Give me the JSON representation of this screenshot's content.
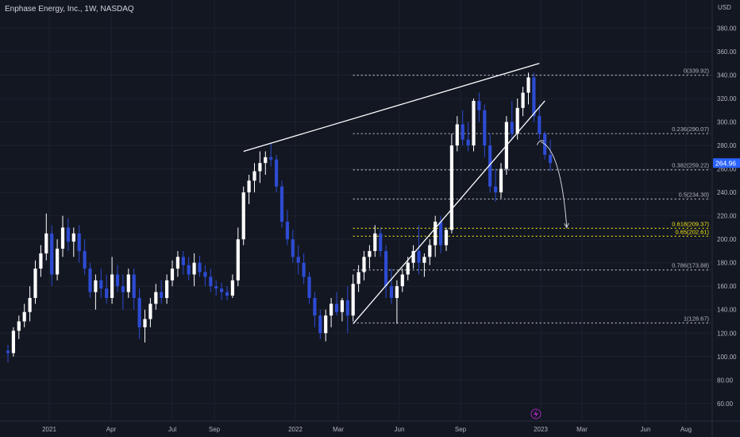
{
  "title": "Enphase Energy, Inc., 1W, NASDAQ",
  "currency": "USD",
  "last_price": "264.96",
  "colors": {
    "background": "#131722",
    "grid": "#1e222d",
    "text": "#b2b5be",
    "bull": "#ffffff",
    "bear": "#2d4bd2",
    "trendline": "#ffffff",
    "fib_line": "#b2b5be",
    "fib_highlight": "#f5e51a",
    "price_tag": "#2962ff"
  },
  "chart_data": {
    "type": "candlestick",
    "y_axis": {
      "ticks": [
        "60.00",
        "80.00",
        "100.00",
        "120.00",
        "140.00",
        "160.00",
        "180.00",
        "200.00",
        "220.00",
        "240.00",
        "260.00",
        "280.00",
        "300.00",
        "320.00",
        "340.00",
        "360.00",
        "380.00"
      ],
      "ylim": [
        45,
        404
      ],
      "position": "right"
    },
    "x_axis": {
      "tick_labels": [
        "2021",
        "Apr",
        "Jul",
        "Sep",
        "2022",
        "Mar",
        "Jun",
        "Sep",
        "2023",
        "Mar",
        "Jun",
        "Aug"
      ]
    },
    "grid": true,
    "candles": [
      {
        "o": 105,
        "h": 110,
        "l": 95,
        "c": 103
      },
      {
        "o": 103,
        "h": 125,
        "l": 100,
        "c": 122
      },
      {
        "o": 122,
        "h": 135,
        "l": 115,
        "c": 130
      },
      {
        "o": 130,
        "h": 145,
        "l": 125,
        "c": 138
      },
      {
        "o": 138,
        "h": 160,
        "l": 130,
        "c": 150
      },
      {
        "o": 150,
        "h": 182,
        "l": 145,
        "c": 175
      },
      {
        "o": 175,
        "h": 195,
        "l": 168,
        "c": 188
      },
      {
        "o": 188,
        "h": 222,
        "l": 182,
        "c": 205
      },
      {
        "o": 205,
        "h": 212,
        "l": 160,
        "c": 170
      },
      {
        "o": 170,
        "h": 200,
        "l": 165,
        "c": 192
      },
      {
        "o": 192,
        "h": 220,
        "l": 185,
        "c": 210
      },
      {
        "o": 210,
        "h": 218,
        "l": 190,
        "c": 198
      },
      {
        "o": 198,
        "h": 210,
        "l": 185,
        "c": 205
      },
      {
        "o": 205,
        "h": 212,
        "l": 180,
        "c": 190
      },
      {
        "o": 190,
        "h": 200,
        "l": 170,
        "c": 175
      },
      {
        "o": 175,
        "h": 180,
        "l": 150,
        "c": 155
      },
      {
        "o": 155,
        "h": 170,
        "l": 140,
        "c": 165
      },
      {
        "o": 165,
        "h": 175,
        "l": 150,
        "c": 158
      },
      {
        "o": 158,
        "h": 170,
        "l": 145,
        "c": 150
      },
      {
        "o": 150,
        "h": 185,
        "l": 145,
        "c": 170
      },
      {
        "o": 170,
        "h": 178,
        "l": 155,
        "c": 160
      },
      {
        "o": 160,
        "h": 170,
        "l": 140,
        "c": 155
      },
      {
        "o": 155,
        "h": 175,
        "l": 150,
        "c": 170
      },
      {
        "o": 170,
        "h": 175,
        "l": 140,
        "c": 150
      },
      {
        "o": 150,
        "h": 158,
        "l": 115,
        "c": 125
      },
      {
        "o": 125,
        "h": 140,
        "l": 112,
        "c": 132
      },
      {
        "o": 132,
        "h": 150,
        "l": 125,
        "c": 145
      },
      {
        "o": 145,
        "h": 162,
        "l": 140,
        "c": 155
      },
      {
        "o": 155,
        "h": 165,
        "l": 145,
        "c": 150
      },
      {
        "o": 150,
        "h": 170,
        "l": 145,
        "c": 165
      },
      {
        "o": 165,
        "h": 182,
        "l": 160,
        "c": 175
      },
      {
        "o": 175,
        "h": 190,
        "l": 168,
        "c": 185
      },
      {
        "o": 185,
        "h": 190,
        "l": 170,
        "c": 178
      },
      {
        "o": 178,
        "h": 185,
        "l": 165,
        "c": 170
      },
      {
        "o": 170,
        "h": 188,
        "l": 160,
        "c": 180
      },
      {
        "o": 180,
        "h": 186,
        "l": 168,
        "c": 172
      },
      {
        "o": 172,
        "h": 178,
        "l": 160,
        "c": 168
      },
      {
        "o": 168,
        "h": 175,
        "l": 155,
        "c": 160
      },
      {
        "o": 160,
        "h": 165,
        "l": 152,
        "c": 158
      },
      {
        "o": 158,
        "h": 163,
        "l": 148,
        "c": 155
      },
      {
        "o": 155,
        "h": 160,
        "l": 148,
        "c": 152
      },
      {
        "o": 152,
        "h": 170,
        "l": 150,
        "c": 165
      },
      {
        "o": 165,
        "h": 210,
        "l": 160,
        "c": 200
      },
      {
        "o": 200,
        "h": 245,
        "l": 195,
        "c": 240
      },
      {
        "o": 240,
        "h": 255,
        "l": 230,
        "c": 250
      },
      {
        "o": 250,
        "h": 265,
        "l": 240,
        "c": 258
      },
      {
        "o": 258,
        "h": 275,
        "l": 248,
        "c": 265
      },
      {
        "o": 265,
        "h": 275,
        "l": 255,
        "c": 270
      },
      {
        "o": 270,
        "h": 282,
        "l": 262,
        "c": 268
      },
      {
        "o": 268,
        "h": 272,
        "l": 240,
        "c": 245
      },
      {
        "o": 245,
        "h": 250,
        "l": 210,
        "c": 215
      },
      {
        "o": 215,
        "h": 225,
        "l": 195,
        "c": 200
      },
      {
        "o": 200,
        "h": 208,
        "l": 180,
        "c": 185
      },
      {
        "o": 185,
        "h": 195,
        "l": 170,
        "c": 180
      },
      {
        "o": 180,
        "h": 188,
        "l": 162,
        "c": 168
      },
      {
        "o": 168,
        "h": 172,
        "l": 145,
        "c": 150
      },
      {
        "o": 150,
        "h": 155,
        "l": 125,
        "c": 135
      },
      {
        "o": 135,
        "h": 140,
        "l": 115,
        "c": 120
      },
      {
        "o": 120,
        "h": 140,
        "l": 113,
        "c": 135
      },
      {
        "o": 135,
        "h": 150,
        "l": 125,
        "c": 145
      },
      {
        "o": 145,
        "h": 155,
        "l": 135,
        "c": 138
      },
      {
        "o": 138,
        "h": 150,
        "l": 130,
        "c": 148
      },
      {
        "o": 148,
        "h": 160,
        "l": 120,
        "c": 135
      },
      {
        "o": 135,
        "h": 170,
        "l": 130,
        "c": 162
      },
      {
        "o": 162,
        "h": 178,
        "l": 155,
        "c": 172
      },
      {
        "o": 172,
        "h": 190,
        "l": 165,
        "c": 185
      },
      {
        "o": 185,
        "h": 195,
        "l": 175,
        "c": 190
      },
      {
        "o": 190,
        "h": 212,
        "l": 185,
        "c": 205
      },
      {
        "o": 205,
        "h": 210,
        "l": 185,
        "c": 190
      },
      {
        "o": 190,
        "h": 195,
        "l": 150,
        "c": 160
      },
      {
        "o": 160,
        "h": 175,
        "l": 145,
        "c": 150
      },
      {
        "o": 150,
        "h": 165,
        "l": 128,
        "c": 160
      },
      {
        "o": 160,
        "h": 175,
        "l": 155,
        "c": 170
      },
      {
        "o": 170,
        "h": 185,
        "l": 165,
        "c": 180
      },
      {
        "o": 180,
        "h": 195,
        "l": 175,
        "c": 190
      },
      {
        "o": 190,
        "h": 212,
        "l": 170,
        "c": 180
      },
      {
        "o": 180,
        "h": 188,
        "l": 168,
        "c": 185
      },
      {
        "o": 185,
        "h": 200,
        "l": 178,
        "c": 195
      },
      {
        "o": 195,
        "h": 220,
        "l": 185,
        "c": 215
      },
      {
        "o": 215,
        "h": 220,
        "l": 188,
        "c": 195
      },
      {
        "o": 195,
        "h": 210,
        "l": 190,
        "c": 208
      },
      {
        "o": 208,
        "h": 290,
        "l": 205,
        "c": 280
      },
      {
        "o": 280,
        "h": 305,
        "l": 275,
        "c": 298
      },
      {
        "o": 298,
        "h": 310,
        "l": 280,
        "c": 285
      },
      {
        "o": 285,
        "h": 300,
        "l": 275,
        "c": 280
      },
      {
        "o": 280,
        "h": 320,
        "l": 275,
        "c": 318
      },
      {
        "o": 318,
        "h": 325,
        "l": 300,
        "c": 310
      },
      {
        "o": 310,
        "h": 315,
        "l": 270,
        "c": 280
      },
      {
        "o": 280,
        "h": 290,
        "l": 240,
        "c": 245
      },
      {
        "o": 245,
        "h": 260,
        "l": 232,
        "c": 240
      },
      {
        "o": 240,
        "h": 265,
        "l": 235,
        "c": 260
      },
      {
        "o": 260,
        "h": 305,
        "l": 255,
        "c": 300
      },
      {
        "o": 300,
        "h": 318,
        "l": 285,
        "c": 290
      },
      {
        "o": 290,
        "h": 320,
        "l": 285,
        "c": 312
      },
      {
        "o": 312,
        "h": 330,
        "l": 305,
        "c": 325
      },
      {
        "o": 325,
        "h": 342,
        "l": 315,
        "c": 338
      },
      {
        "o": 338,
        "h": 342,
        "l": 300,
        "c": 305
      },
      {
        "o": 305,
        "h": 315,
        "l": 285,
        "c": 290
      },
      {
        "o": 290,
        "h": 292,
        "l": 268,
        "c": 272
      },
      {
        "o": 272,
        "h": 285,
        "l": 258,
        "c": 264.96
      }
    ],
    "fib_levels": [
      {
        "label": "0(339.92)",
        "value": 339.92,
        "highlight": false
      },
      {
        "label": "0.236(290.07)",
        "value": 290.07,
        "highlight": false
      },
      {
        "label": "0.382(259.22)",
        "value": 259.22,
        "highlight": false
      },
      {
        "label": "0.5(234.30)",
        "value": 234.3,
        "highlight": false
      },
      {
        "label": "0.618(209.37)",
        "value": 209.37,
        "highlight": true
      },
      {
        "label": "0.65(202.61)",
        "value": 202.61,
        "highlight": true
      },
      {
        "label": "0.786(173.88)",
        "value": 173.88,
        "highlight": false
      },
      {
        "label": "1(128.67)",
        "value": 128.67,
        "highlight": false
      }
    ],
    "fib_start_index": 63,
    "trendlines": [
      {
        "i1": 43,
        "p1": 275,
        "i2": 97,
        "p2": 350
      },
      {
        "i1": 63,
        "p1": 128,
        "i2": 98,
        "p2": 318
      }
    ],
    "projection": {
      "i1": 97.3,
      "p1": 283,
      "i2": 102,
      "p2": 210
    }
  }
}
